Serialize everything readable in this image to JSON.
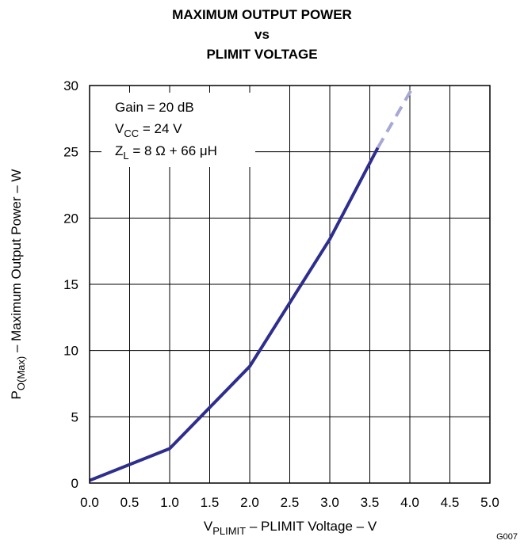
{
  "chart_data": {
    "type": "line",
    "title": [
      "MAXIMUM OUTPUT POWER",
      "vs",
      "PLIMIT VOLTAGE"
    ],
    "xlabel": {
      "main": "V",
      "sub": "PLIMIT",
      "rest": " – PLIMIT Voltage – V"
    },
    "ylabel": {
      "main": "P",
      "sub": "O(Max)",
      "rest": " – Maximum Output Power – W"
    },
    "xlim": [
      0,
      5
    ],
    "ylim": [
      0,
      30
    ],
    "x_ticks": [
      "0.0",
      "0.5",
      "1.0",
      "1.5",
      "2.0",
      "2.5",
      "3.0",
      "3.5",
      "4.0",
      "4.5",
      "5.0"
    ],
    "y_ticks": [
      "0",
      "5",
      "10",
      "15",
      "20",
      "25",
      "30"
    ],
    "grid": true,
    "legend_position": "top-left",
    "series": [
      {
        "style": "solid",
        "color": "#2e2e8e",
        "x": [
          0.0,
          1.0,
          2.0,
          3.0,
          3.6
        ],
        "y": [
          0.2,
          2.6,
          8.8,
          18.4,
          25.3
        ]
      },
      {
        "style": "dashed",
        "color": "#a8a8d6",
        "x": [
          3.6,
          4.05
        ],
        "y": [
          25.3,
          30.0
        ]
      }
    ],
    "annotations": [
      {
        "main": "Gain = 20 dB"
      },
      {
        "main": "V",
        "sub": "CC",
        "rest": " = 24 V"
      },
      {
        "main": "Z",
        "sub": "L",
        "rest": " = 8 Ω + 66 μH"
      }
    ]
  },
  "figure_tag": "G007"
}
